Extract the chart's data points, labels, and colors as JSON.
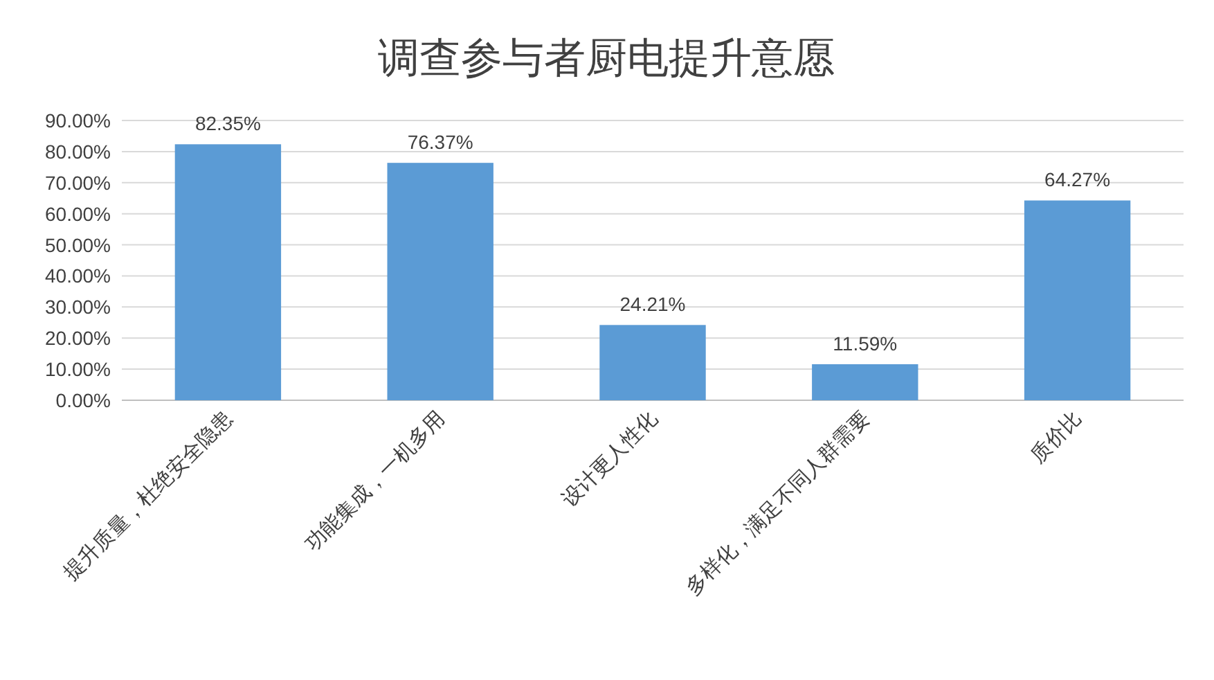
{
  "chart_data": {
    "type": "bar",
    "title": "调查参与者厨电提升意愿",
    "categories": [
      "提升质量，杜绝安全隐患",
      "功能集成，一机多用",
      "设计更人性化",
      "多样化，满足不同人群需要",
      "质价比"
    ],
    "values": [
      82.35,
      76.37,
      24.21,
      11.59,
      64.27
    ],
    "value_labels": [
      "82.35%",
      "76.37%",
      "24.21%",
      "11.59%",
      "64.27%"
    ],
    "color": "#5b9bd5",
    "ylim": [
      0,
      90
    ],
    "yticks": [
      {
        "value": 0,
        "label": "0.00%"
      },
      {
        "value": 10,
        "label": "10.00%"
      },
      {
        "value": 20,
        "label": "20.00%"
      },
      {
        "value": 30,
        "label": "30.00%"
      },
      {
        "value": 40,
        "label": "40.00%"
      },
      {
        "value": 50,
        "label": "50.00%"
      },
      {
        "value": 60,
        "label": "60.00%"
      },
      {
        "value": 70,
        "label": "70.00%"
      },
      {
        "value": 80,
        "label": "80.00%"
      },
      {
        "value": 90,
        "label": "90.00%"
      }
    ],
    "grid": "y"
  }
}
